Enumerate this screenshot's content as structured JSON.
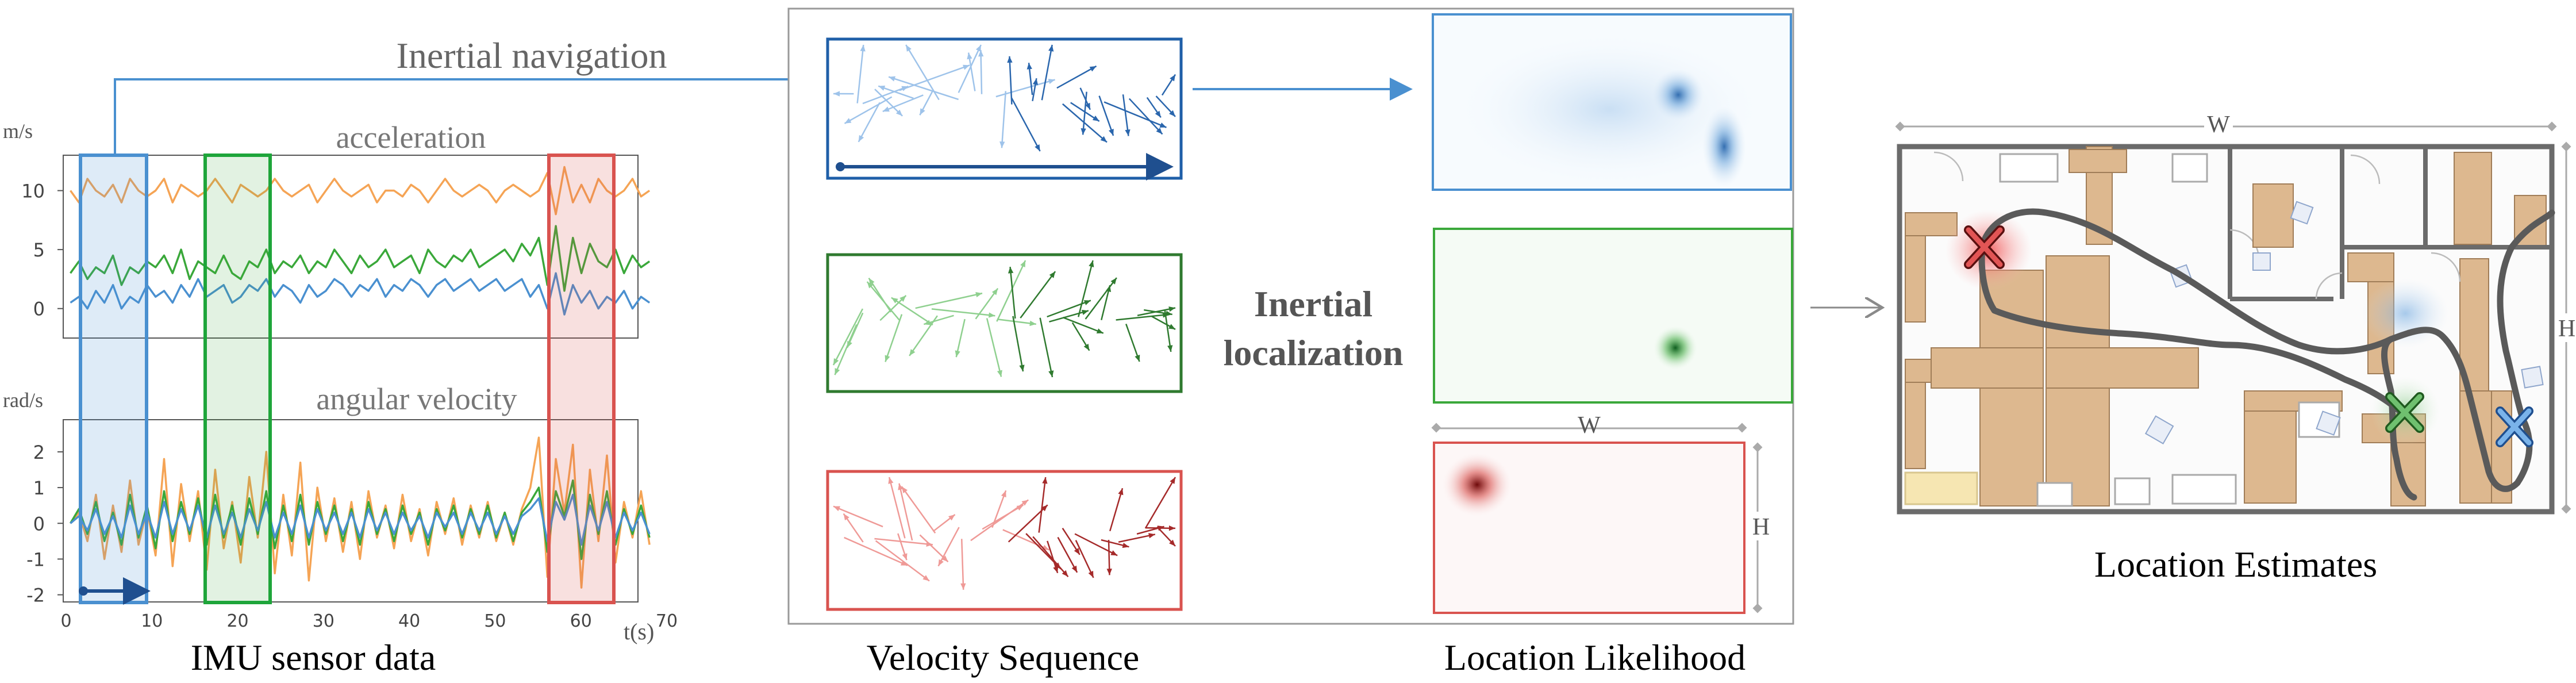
{
  "labels": {
    "inertial_navigation": "Inertial navigation",
    "inertial_localization_line1": "Inertial",
    "inertial_localization_line2": "localization",
    "imu_caption": "IMU sensor data",
    "velocity_caption": "Velocity Sequence",
    "likelihood_caption": "Location Likelihood",
    "estimates_caption": "Location Estimates",
    "w_label": "W",
    "h_label": "H",
    "w_label_map": "W",
    "h_label_map": "H"
  },
  "colors": {
    "blue": "#4a90d0",
    "green": "#3aa83a",
    "red": "#d9534f",
    "orange": "#f5a455",
    "gray": "#7f7f7f",
    "dark_blue": "#1f5fa8"
  },
  "chart_data": [
    {
      "type": "line",
      "title": "acceleration",
      "ylabel": "m/s",
      "xlabel": "t(s)",
      "xlim": [
        0,
        70
      ],
      "ylim": [
        -2.5,
        13
      ],
      "yticks": [
        0,
        5,
        10
      ],
      "xticks": [
        0,
        10,
        20,
        30,
        40,
        50,
        60,
        70
      ],
      "series": [
        {
          "color": "#f5a455",
          "values": [
            10,
            9,
            11,
            10,
            9.5,
            10.5,
            9,
            11,
            10,
            9.5,
            10,
            11,
            9,
            10.5,
            10,
            9.5,
            10,
            11,
            10,
            9,
            10.5,
            10,
            9.5,
            10,
            11,
            10,
            9.5,
            10,
            10.5,
            9,
            10,
            11,
            10,
            9.5,
            10,
            10.5,
            9,
            10,
            10,
            9.5,
            10.5,
            10,
            9,
            10,
            11,
            10,
            9.5,
            10,
            10.5,
            10,
            9,
            10,
            10.5,
            10,
            9.5,
            10,
            11.5,
            8,
            12,
            9,
            10.5,
            9,
            11,
            10,
            9.5,
            10,
            11,
            9.5,
            10
          ]
        },
        {
          "color": "#3aa83a",
          "values": [
            3,
            4,
            2.5,
            3.5,
            3,
            4.5,
            2,
            3.5,
            3,
            4,
            3.5,
            4.5,
            3,
            5,
            2.5,
            4,
            3.5,
            3,
            4.5,
            3,
            2.5,
            4,
            3.5,
            5,
            3,
            4,
            3.5,
            4.5,
            3,
            4,
            3.5,
            5,
            4,
            3,
            4.5,
            3.5,
            4,
            5,
            3.5,
            4,
            4.5,
            3,
            5,
            4,
            3.5,
            4.5,
            4,
            5,
            3.5,
            4,
            4.5,
            5,
            4,
            5.5,
            4.5,
            6,
            2,
            7,
            1.5,
            6,
            3,
            5.5,
            4,
            3.5,
            5,
            3,
            4.5,
            3.5,
            4
          ]
        },
        {
          "color": "#4a90d0",
          "values": [
            0.5,
            1,
            0,
            1.5,
            0.5,
            2,
            0,
            1,
            0.5,
            2,
            1,
            1.5,
            0.5,
            2,
            1,
            2.5,
            1,
            1.5,
            2,
            0.5,
            1,
            2,
            1.5,
            2.5,
            1,
            2,
            1.5,
            0.5,
            2,
            1,
            1.5,
            2.5,
            2,
            1,
            2,
            1.5,
            2.5,
            1,
            2,
            1.5,
            2.5,
            2,
            1,
            2,
            2.5,
            1.5,
            2,
            2.5,
            1.5,
            2,
            2.5,
            1.5,
            2,
            2.5,
            1,
            2,
            0,
            3,
            -0.5,
            2,
            0.5,
            1.5,
            0,
            1,
            0.5,
            1.5,
            0,
            1,
            0.5
          ]
        }
      ]
    },
    {
      "type": "line",
      "title": "angular velocity",
      "ylabel": "rad/s",
      "xlabel": "t(s)",
      "xlim": [
        0,
        70
      ],
      "ylim": [
        -2.2,
        2.9
      ],
      "yticks": [
        -2,
        -1,
        0,
        1,
        2
      ],
      "xticks": [
        0,
        10,
        20,
        30,
        40,
        50,
        60,
        70
      ],
      "series": [
        {
          "color": "#f5a455",
          "values": [
            0,
            0.3,
            -0.5,
            0.8,
            -1,
            0.5,
            -0.8,
            1.2,
            -0.6,
            0.4,
            -0.9,
            1.8,
            -1.2,
            1.1,
            -0.5,
            0.9,
            -1.3,
            1.5,
            -0.7,
            0.6,
            -1.1,
            1.3,
            -0.4,
            2,
            -1.4,
            0.8,
            -0.9,
            1.7,
            -1.6,
            1,
            -0.5,
            0.7,
            -0.8,
            0.6,
            -1,
            0.9,
            -0.4,
            0.5,
            -0.7,
            0.8,
            -0.5,
            0.4,
            -0.9,
            0.6,
            -0.3,
            0.7,
            -0.6,
            0.5,
            -0.4,
            0.6,
            -0.5,
            0.3,
            -0.6,
            0.4,
            1,
            2.4,
            -1.5,
            1.8,
            0.3,
            2.2,
            -1.8,
            1.5,
            -0.5,
            1.9,
            -1.1,
            0.6,
            -0.4,
            0.9,
            -0.6
          ]
        },
        {
          "color": "#3aa83a",
          "values": [
            0,
            0.4,
            -0.3,
            0.6,
            -0.5,
            0.3,
            -0.6,
            0.8,
            -0.4,
            0.5,
            -0.7,
            0.9,
            -0.5,
            0.6,
            -0.3,
            0.7,
            -0.6,
            0.8,
            -0.4,
            0.5,
            -0.6,
            0.7,
            -0.3,
            0.9,
            -0.7,
            0.5,
            -0.5,
            0.8,
            -0.6,
            0.6,
            -0.3,
            0.5,
            -0.5,
            0.4,
            -0.6,
            0.6,
            -0.3,
            0.4,
            -0.5,
            0.5,
            -0.3,
            0.3,
            -0.6,
            0.4,
            -0.2,
            0.5,
            -0.4,
            0.4,
            -0.3,
            0.5,
            -0.4,
            0.3,
            -0.5,
            0.3,
            0.6,
            1,
            -0.8,
            0.9,
            0.2,
            1.2,
            -1,
            0.8,
            -0.3,
            0.9,
            -0.6,
            0.4,
            -0.3,
            0.5,
            -0.4
          ]
        },
        {
          "color": "#4a90d0",
          "values": [
            0,
            0.2,
            -0.2,
            0.4,
            -0.3,
            0.2,
            -0.4,
            0.5,
            -0.3,
            0.3,
            -0.4,
            0.6,
            -0.3,
            0.4,
            -0.2,
            0.5,
            -0.4,
            0.5,
            -0.3,
            0.3,
            -0.4,
            0.4,
            -0.2,
            0.6,
            -0.4,
            0.3,
            -0.3,
            0.5,
            -0.4,
            0.4,
            -0.2,
            0.3,
            -0.3,
            0.3,
            -0.4,
            0.4,
            -0.2,
            0.3,
            -0.3,
            0.3,
            -0.2,
            0.2,
            -0.4,
            0.3,
            -0.1,
            0.3,
            -0.3,
            0.3,
            -0.2,
            0.3,
            -0.3,
            0.2,
            -0.3,
            0.2,
            0.4,
            0.7,
            -0.5,
            0.6,
            0.1,
            0.8,
            -0.6,
            0.5,
            -0.2,
            0.6,
            -0.4,
            0.3,
            -0.2,
            0.3,
            -0.3
          ]
        }
      ]
    }
  ]
}
